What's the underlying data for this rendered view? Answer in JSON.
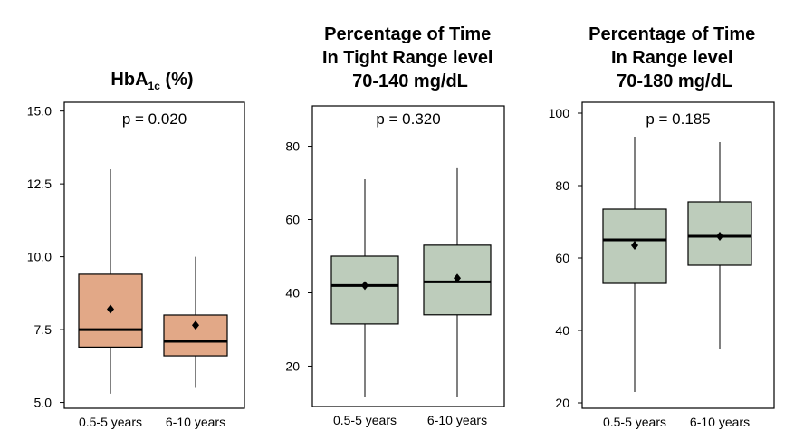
{
  "chart_data": [
    {
      "type": "box",
      "title": "HbA1c (%)",
      "title_main": "HbA",
      "title_sub": "1c",
      "title_rest": " (%)",
      "annotation": "p = 0.020",
      "categories": [
        "0.5-5 years",
        "6-10 years"
      ],
      "ylim": [
        4.8,
        15.3
      ],
      "yticks": [
        5.0,
        7.5,
        10.0,
        12.5,
        15.0
      ],
      "ytick_labels": [
        "5.0",
        "7.5",
        "10.0",
        "12.5",
        "15.0"
      ],
      "fill_color": "#E2A887",
      "boxes": [
        {
          "min": 5.3,
          "q1": 6.9,
          "median": 7.5,
          "q3": 9.4,
          "max": 13.0,
          "mean": 8.2
        },
        {
          "min": 5.5,
          "q1": 6.6,
          "median": 7.1,
          "q3": 8.0,
          "max": 10.0,
          "mean": 7.65
        }
      ]
    },
    {
      "type": "box",
      "title": "Percentage of Time In Tight Range level 70-140 mg/dL",
      "title_lines": [
        "Percentage of Time",
        "In Tight Range level",
        "70-140 mg/dL"
      ],
      "annotation": "p = 0.320",
      "categories": [
        "0.5-5 years",
        "6-10 years"
      ],
      "ylim": [
        9,
        91
      ],
      "yticks": [
        20,
        40,
        60,
        80
      ],
      "ytick_labels": [
        "20",
        "40",
        "60",
        "80"
      ],
      "fill_color": "#BDCCBB",
      "boxes": [
        {
          "min": 11.5,
          "q1": 31.5,
          "median": 42,
          "q3": 50,
          "max": 71,
          "mean": 42
        },
        {
          "min": 11.5,
          "q1": 34,
          "median": 43,
          "q3": 53,
          "max": 74,
          "mean": 44
        }
      ]
    },
    {
      "type": "box",
      "title": "Percentage of Time In Range level 70-180 mg/dL",
      "title_lines": [
        "Percentage of Time",
        "In Range level",
        "70-180 mg/dL"
      ],
      "annotation": "p = 0.185",
      "categories": [
        "0.5-5 years",
        "6-10 years"
      ],
      "ylim": [
        18.5,
        103
      ],
      "yticks": [
        20,
        40,
        60,
        80,
        100
      ],
      "ytick_labels": [
        "20",
        "40",
        "60",
        "80",
        "100"
      ],
      "fill_color": "#BDCCBB",
      "boxes": [
        {
          "min": 23,
          "q1": 53,
          "median": 65,
          "q3": 73.5,
          "max": 93.5,
          "mean": 63.5
        },
        {
          "min": 35,
          "q1": 58,
          "median": 66,
          "q3": 75.5,
          "max": 92,
          "mean": 66
        }
      ]
    }
  ]
}
